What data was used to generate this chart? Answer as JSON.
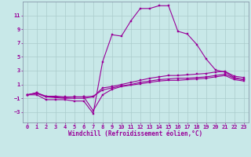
{
  "xlabel": "Windchill (Refroidissement éolien,°C)",
  "ylabel": "",
  "bg_color": "#c8e8e8",
  "line_color": "#990099",
  "grid_color": "#aacccc",
  "spine_color": "#8899aa",
  "x_ticks": [
    0,
    1,
    2,
    3,
    4,
    5,
    6,
    7,
    8,
    9,
    10,
    11,
    12,
    13,
    14,
    15,
    16,
    17,
    18,
    19,
    20,
    21,
    22,
    23
  ],
  "y_ticks": [
    -3,
    -1,
    1,
    3,
    5,
    7,
    9,
    11
  ],
  "xlim": [
    -0.5,
    23.5
  ],
  "ylim": [
    -4.5,
    13.0
  ],
  "lines": [
    [
      0.0,
      -0.5,
      1.0,
      -0.5,
      2.0,
      -1.2,
      3.0,
      -1.2,
      4.0,
      -1.2,
      5.0,
      -1.4,
      6.0,
      -1.4,
      7.0,
      -3.2,
      8.0,
      4.3,
      9.0,
      8.2,
      10.0,
      8.0,
      11.0,
      10.2,
      12.0,
      12.0,
      13.0,
      12.0,
      14.0,
      12.4,
      15.0,
      12.4,
      16.0,
      8.7,
      17.0,
      8.3,
      18.0,
      6.8,
      19.0,
      4.7,
      20.0,
      3.1,
      21.0,
      2.8,
      22.0,
      2.0,
      23.0,
      1.7
    ],
    [
      0.0,
      -0.5,
      1.0,
      -0.3,
      2.0,
      -0.8,
      3.0,
      -0.9,
      4.0,
      -1.0,
      5.0,
      -1.0,
      6.0,
      -1.0,
      7.0,
      -0.8,
      8.0,
      0.5,
      9.0,
      0.7,
      10.0,
      1.0,
      11.0,
      1.3,
      12.0,
      1.6,
      13.0,
      1.9,
      14.0,
      2.1,
      15.0,
      2.3,
      16.0,
      2.3,
      17.0,
      2.4,
      18.0,
      2.5,
      19.0,
      2.6,
      20.0,
      2.8,
      21.0,
      2.9,
      22.0,
      2.2,
      23.0,
      2.0
    ],
    [
      0.0,
      -0.5,
      1.0,
      -0.2,
      2.0,
      -0.8,
      3.0,
      -0.8,
      4.0,
      -0.9,
      5.0,
      -0.8,
      6.0,
      -0.8,
      7.0,
      -0.7,
      8.0,
      0.2,
      9.0,
      0.5,
      10.0,
      0.8,
      11.0,
      1.0,
      12.0,
      1.3,
      13.0,
      1.5,
      14.0,
      1.7,
      15.0,
      1.8,
      16.0,
      1.9,
      17.0,
      1.9,
      18.0,
      2.0,
      19.0,
      2.1,
      20.0,
      2.3,
      21.0,
      2.5,
      22.0,
      1.9,
      23.0,
      1.7
    ],
    [
      0.0,
      -0.5,
      1.0,
      -0.2,
      2.0,
      -0.7,
      3.0,
      -0.7,
      4.0,
      -0.8,
      5.0,
      -0.8,
      6.0,
      -0.8,
      7.0,
      -2.8,
      8.0,
      -0.5,
      9.0,
      0.3,
      10.0,
      0.7,
      11.0,
      0.9,
      12.0,
      1.1,
      13.0,
      1.3,
      14.0,
      1.5,
      15.0,
      1.6,
      16.0,
      1.6,
      17.0,
      1.7,
      18.0,
      1.8,
      19.0,
      1.9,
      20.0,
      2.1,
      21.0,
      2.3,
      22.0,
      1.7,
      23.0,
      1.5
    ]
  ],
  "tick_fontsize": 5.0,
  "xlabel_fontsize": 5.5,
  "marker_size": 2.0,
  "line_width": 0.8
}
